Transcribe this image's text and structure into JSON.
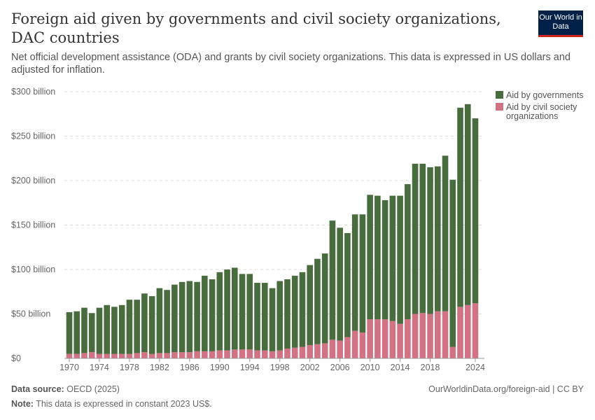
{
  "title": "Foreign aid given by governments and civil society organizations, DAC countries",
  "subtitle": "Net official development assistance (ODA) and grants by civil society organizations. This data is expressed in US dollars and adjusted for inflation.",
  "logo": "Our World in Data",
  "footer": {
    "source_label": "Data source:",
    "source": "OECD (2025)",
    "url": "OurWorldinData.org/foreign-aid | CC BY",
    "note_label": "Note:",
    "note": "This data is expressed in constant 2023 US$."
  },
  "colors": {
    "governments": "#486c3e",
    "civil": "#d17385"
  },
  "chart_data": {
    "type": "bar",
    "stacked": true,
    "legend_position": "top-right",
    "grid": true,
    "ylim": [
      0,
      300
    ],
    "yticks": [
      "$0",
      "$50 billion",
      "$100 billion",
      "$150 billion",
      "$200 billion",
      "$250 billion",
      "$300 billion"
    ],
    "xticks": [
      "1970",
      "1974",
      "1978",
      "1982",
      "1986",
      "1990",
      "1994",
      "1998",
      "2002",
      "2006",
      "2010",
      "2014",
      "2018",
      "2024"
    ],
    "categories": [
      1970,
      1971,
      1972,
      1973,
      1974,
      1975,
      1976,
      1977,
      1978,
      1979,
      1980,
      1981,
      1982,
      1983,
      1984,
      1985,
      1986,
      1987,
      1988,
      1989,
      1990,
      1991,
      1992,
      1993,
      1994,
      1995,
      1996,
      1997,
      1998,
      1999,
      2000,
      2001,
      2002,
      2003,
      2004,
      2005,
      2006,
      2007,
      2008,
      2009,
      2010,
      2011,
      2012,
      2013,
      2014,
      2015,
      2016,
      2017,
      2018,
      2019,
      2020,
      2021,
      2022,
      2023,
      2024
    ],
    "series": [
      {
        "name": "Aid by civil society organizations",
        "values": [
          5,
          5,
          6,
          7,
          5,
          5,
          5,
          5,
          5,
          6,
          7,
          5,
          6,
          6,
          7,
          7,
          7,
          8,
          8,
          8,
          9,
          9,
          10,
          10,
          10,
          9,
          9,
          8,
          9,
          11,
          12,
          13,
          15,
          16,
          17,
          21,
          20,
          24,
          31,
          29,
          44,
          44,
          44,
          42,
          39,
          44,
          50,
          51,
          50,
          53,
          53,
          13,
          58,
          60,
          62
        ]
      },
      {
        "name": "Aid by governments",
        "values": [
          47,
          48,
          51,
          44,
          52,
          55,
          53,
          55,
          61,
          60,
          66,
          65,
          73,
          71,
          76,
          79,
          80,
          78,
          85,
          81,
          88,
          91,
          92,
          85,
          85,
          76,
          76,
          71,
          78,
          78,
          81,
          84,
          90,
          96,
          101,
          134,
          127,
          117,
          131,
          133,
          140,
          139,
          134,
          141,
          144,
          152,
          169,
          168,
          165,
          163,
          175,
          188,
          224,
          226,
          208
        ]
      }
    ]
  }
}
